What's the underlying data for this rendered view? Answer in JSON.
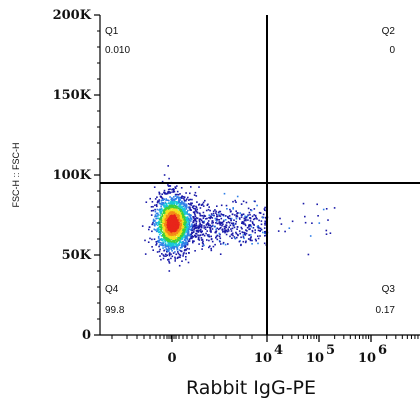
{
  "chart_data": {
    "type": "scatter",
    "style": "flow-cytometry-density-dot-plot",
    "title": "",
    "xlabel": "Rabbit IgG-PE",
    "ylabel": "FSC-H :: FSC-H",
    "x_scale": "biexponential",
    "y_scale": "linear",
    "ylim": [
      0,
      200000
    ],
    "x_tick_labels": [
      {
        "base": "0",
        "exp": ""
      },
      {
        "base": "10",
        "exp": "4"
      },
      {
        "base": "10",
        "exp": "5"
      },
      {
        "base": "10",
        "exp": "6"
      }
    ],
    "y_tick_labels": [
      "0",
      "50K",
      "100K",
      "150K",
      "200K"
    ],
    "y_ticks": [
      0,
      50000,
      100000,
      150000,
      200000
    ],
    "gate": {
      "x": 10000,
      "y": 95000
    },
    "quadrants": [
      {
        "name": "Q1",
        "value": "0.010",
        "region": "top-left"
      },
      {
        "name": "Q2",
        "value": "0",
        "region": "top-right"
      },
      {
        "name": "Q3",
        "value": "0.17",
        "region": "bottom-right"
      },
      {
        "name": "Q4",
        "value": "99.8",
        "region": "bottom-left"
      }
    ],
    "population": {
      "center_x": 0,
      "center_y": 70000,
      "y_spread": 9000,
      "tail_to_x": 100000
    },
    "colors": {
      "density": [
        "#1a1aa8",
        "#2f7fe8",
        "#18c7d8",
        "#3ccf3c",
        "#f2e21e",
        "#f58a16",
        "#e8251a"
      ],
      "gate_line": "#000000"
    }
  }
}
